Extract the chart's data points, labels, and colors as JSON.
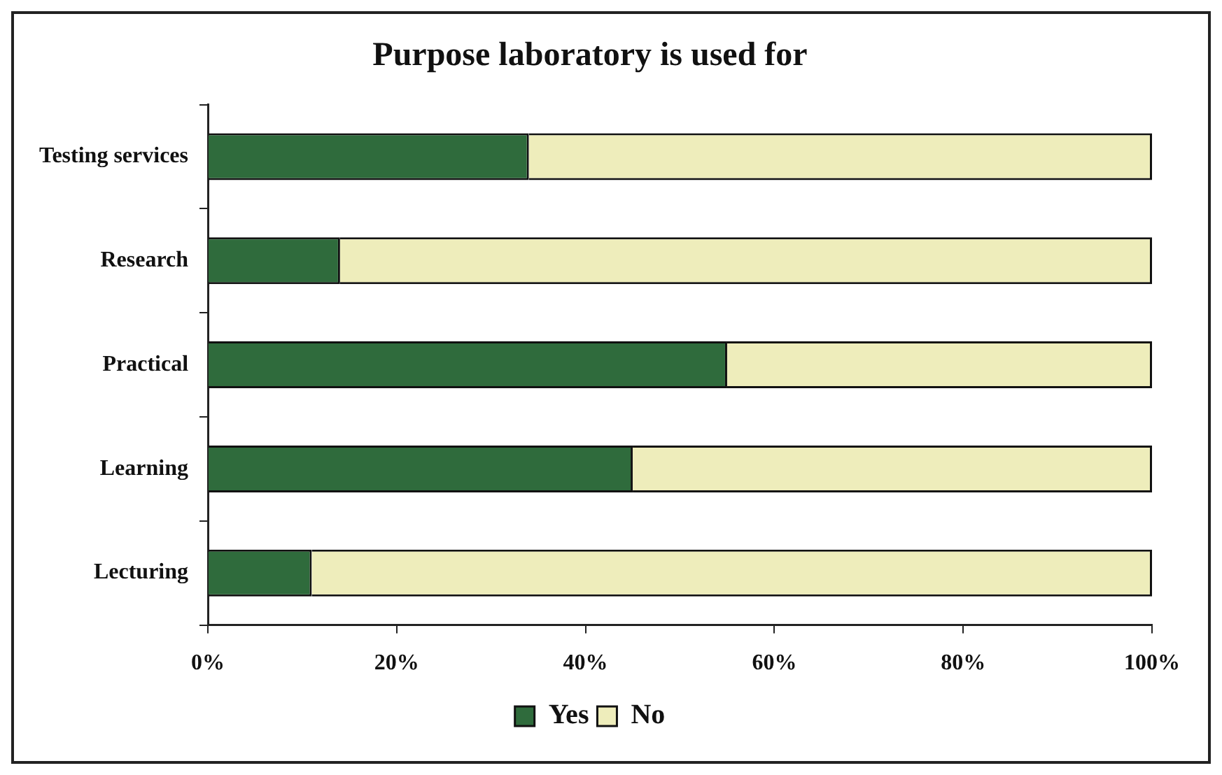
{
  "chart_data": {
    "type": "bar",
    "orientation": "horizontal",
    "stacked": true,
    "title": "Purpose laboratory is used for",
    "categories": [
      "Testing services",
      "Research",
      "Practical",
      "Learning",
      "Lecturing"
    ],
    "series": [
      {
        "name": "Yes",
        "color": "#2f6b3c",
        "values": [
          34,
          14,
          55,
          45,
          11
        ]
      },
      {
        "name": "No",
        "color": "#eeedbb",
        "values": [
          66,
          86,
          45,
          55,
          89
        ]
      }
    ],
    "xlim": [
      0,
      100
    ],
    "xticks": [
      {
        "value": 0,
        "label": "0%"
      },
      {
        "value": 20,
        "label": "20%"
      },
      {
        "value": 40,
        "label": "40%"
      },
      {
        "value": 60,
        "label": "60%"
      },
      {
        "value": 80,
        "label": "80%"
      },
      {
        "value": 100,
        "label": "100%"
      }
    ],
    "grid": false,
    "legend": "bottom"
  }
}
